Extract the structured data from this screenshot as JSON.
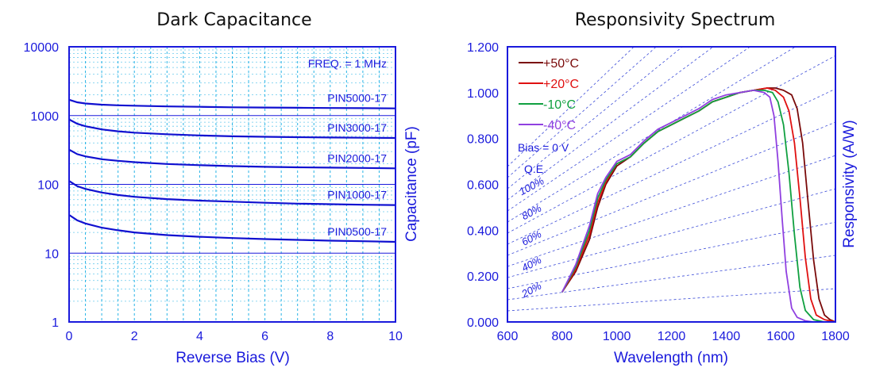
{
  "colors": {
    "axis": "#1a1adc",
    "grid": "#28b4e6",
    "qe_line": "#3c4cd8"
  },
  "chart_data": [
    {
      "type": "line",
      "title": "Dark Capacitance",
      "xlabel": "Reverse Bias (V)",
      "ylabel": "Capacitance (pF)",
      "xlim": [
        0,
        10
      ],
      "ylim": [
        1,
        10000
      ],
      "y_scale": "log",
      "grid": true,
      "x_ticks": [
        "0",
        "2",
        "4",
        "6",
        "8",
        "10"
      ],
      "y_ticks": [
        "1",
        "10",
        "100",
        "1000",
        "10000"
      ],
      "annotation": "FREQ. = 1 MHz",
      "x": [
        0,
        0.25,
        0.5,
        1,
        1.5,
        2,
        3,
        4,
        5,
        6,
        7,
        8,
        9,
        10
      ],
      "series": [
        {
          "name": "PIN5000-17",
          "color": "#1010d0",
          "values": [
            1700,
            1560,
            1500,
            1440,
            1410,
            1390,
            1360,
            1340,
            1320,
            1310,
            1300,
            1290,
            1280,
            1270
          ]
        },
        {
          "name": "PIN3000-17",
          "color": "#1010d0",
          "values": [
            880,
            760,
            700,
            630,
            590,
            565,
            535,
            515,
            500,
            492,
            485,
            480,
            476,
            472
          ]
        },
        {
          "name": "PIN2000-17",
          "color": "#1010d0",
          "values": [
            320,
            275,
            255,
            232,
            220,
            210,
            198,
            190,
            184,
            180,
            177,
            175,
            173,
            171
          ]
        },
        {
          "name": "PIN1000-17",
          "color": "#1010d0",
          "values": [
            112,
            94,
            86,
            76,
            70,
            66,
            61,
            58,
            56,
            54,
            52.5,
            51.5,
            50.5,
            50
          ]
        },
        {
          "name": "PIN0500-17",
          "color": "#1010d0",
          "values": [
            36,
            30,
            27,
            23.5,
            21.5,
            20,
            18.3,
            17.3,
            16.6,
            16.0,
            15.6,
            15.2,
            14.9,
            14.6
          ]
        }
      ]
    },
    {
      "type": "line",
      "title": "Responsivity Spectrum",
      "xlabel": "Wavelength (nm)",
      "ylabel": "Responsivity  (A/W)",
      "xlim": [
        600,
        1800
      ],
      "ylim": [
        0,
        1.2
      ],
      "grid": false,
      "x_ticks": [
        "600",
        "800",
        "1000",
        "1200",
        "1400",
        "1600",
        "1800"
      ],
      "y_ticks": [
        "0.000",
        "0.200",
        "0.400",
        "0.600",
        "0.800",
        "1.000",
        "1.200"
      ],
      "legend_position": "top-left",
      "annotations": [
        "Bias = 0 V",
        "Q.E."
      ],
      "qe_labels": [
        "20%",
        "40%",
        "60%",
        "80%",
        "100%"
      ],
      "qe_levels": [
        0.1,
        0.2,
        0.3,
        0.4,
        0.5,
        0.6,
        0.7,
        0.8,
        0.9,
        1.0,
        1.1,
        1.2,
        1.3,
        1.4
      ],
      "series": [
        {
          "name": "+50°C",
          "color": "#7a0a0a",
          "x": [
            800,
            850,
            900,
            930,
            960,
            1000,
            1050,
            1100,
            1150,
            1200,
            1250,
            1300,
            1350,
            1400,
            1450,
            1500,
            1550,
            1580,
            1610,
            1640,
            1660,
            1680,
            1700,
            1720,
            1740,
            1760,
            1780,
            1800
          ],
          "values": [
            0.13,
            0.22,
            0.36,
            0.5,
            0.6,
            0.68,
            0.72,
            0.78,
            0.83,
            0.86,
            0.89,
            0.92,
            0.96,
            0.98,
            1.0,
            1.01,
            1.02,
            1.02,
            1.01,
            0.99,
            0.93,
            0.78,
            0.52,
            0.27,
            0.1,
            0.03,
            0.01,
            0.0
          ]
        },
        {
          "name": "+20°C",
          "color": "#e01010",
          "x": [
            800,
            850,
            900,
            930,
            960,
            1000,
            1050,
            1100,
            1150,
            1200,
            1250,
            1300,
            1350,
            1400,
            1450,
            1500,
            1550,
            1580,
            1610,
            1630,
            1650,
            1670,
            1690,
            1710,
            1730,
            1760,
            1800
          ],
          "values": [
            0.13,
            0.23,
            0.38,
            0.52,
            0.61,
            0.69,
            0.72,
            0.78,
            0.83,
            0.86,
            0.89,
            0.92,
            0.96,
            0.98,
            1.0,
            1.01,
            1.02,
            1.01,
            0.98,
            0.92,
            0.78,
            0.54,
            0.28,
            0.1,
            0.03,
            0.01,
            0.0
          ]
        },
        {
          "name": "-10°C",
          "color": "#10a040",
          "x": [
            800,
            850,
            900,
            930,
            960,
            1000,
            1050,
            1100,
            1150,
            1200,
            1250,
            1300,
            1350,
            1400,
            1450,
            1500,
            1540,
            1570,
            1590,
            1610,
            1630,
            1650,
            1670,
            1690,
            1720,
            1760
          ],
          "values": [
            0.13,
            0.24,
            0.4,
            0.54,
            0.62,
            0.69,
            0.72,
            0.78,
            0.83,
            0.86,
            0.89,
            0.92,
            0.96,
            0.98,
            1.0,
            1.01,
            1.01,
            1.0,
            0.96,
            0.86,
            0.65,
            0.38,
            0.15,
            0.05,
            0.01,
            0.0
          ]
        },
        {
          "name": "-40°C",
          "color": "#9040e0",
          "x": [
            800,
            850,
            900,
            930,
            960,
            1000,
            1050,
            1100,
            1150,
            1200,
            1250,
            1300,
            1350,
            1400,
            1450,
            1500,
            1540,
            1560,
            1575,
            1590,
            1605,
            1620,
            1640,
            1660,
            1690,
            1720
          ],
          "values": [
            0.13,
            0.25,
            0.42,
            0.56,
            0.63,
            0.7,
            0.73,
            0.79,
            0.84,
            0.87,
            0.9,
            0.93,
            0.97,
            0.99,
            1.0,
            1.01,
            1.0,
            0.98,
            0.9,
            0.7,
            0.45,
            0.22,
            0.06,
            0.02,
            0.005,
            0.0
          ]
        }
      ]
    }
  ]
}
